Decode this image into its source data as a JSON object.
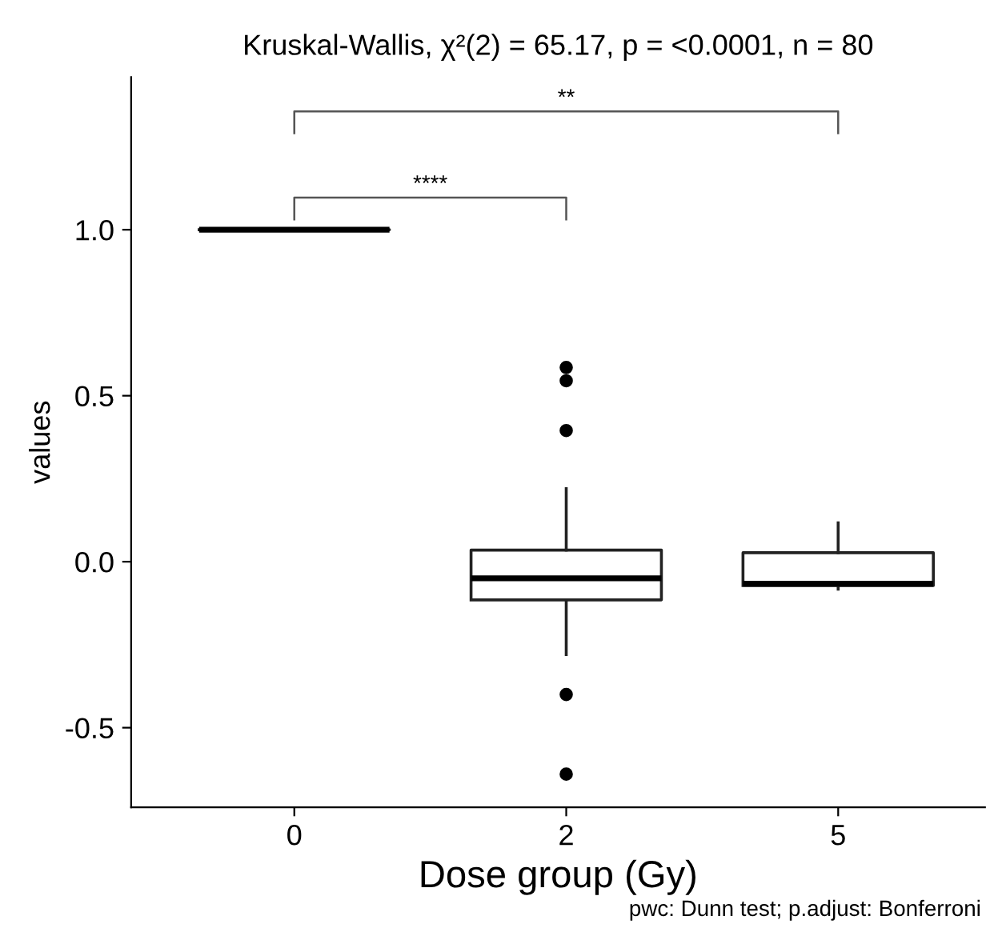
{
  "chart_data": {
    "type": "box",
    "title": "Kruskal-Wallis, χ²(2) = 65.17, p = <0.0001, n = 80",
    "xlabel": "Dose group (Gy)",
    "ylabel": "values",
    "categories": [
      "0",
      "2",
      "5"
    ],
    "boxes": [
      {
        "low": 1.0,
        "q1": 1.0,
        "median": 1.0,
        "q3": 1.0,
        "high": 1.0
      },
      {
        "low": -0.28,
        "q1": -0.115,
        "median": -0.05,
        "q3": 0.035,
        "high": 0.22,
        "outliers": [
          0.585,
          0.545,
          0.395,
          -0.4,
          -0.64
        ]
      },
      {
        "low": -0.083,
        "q1": -0.072,
        "median": -0.066,
        "q3": 0.027,
        "high": 0.117
      }
    ],
    "ylim": [
      -0.74,
      1.46
    ],
    "yticks": [
      -0.5,
      {
        "value": 0,
        "label": "0.0"
      },
      0.5,
      {
        "value": 1,
        "label": "1.0"
      }
    ],
    "grid": false,
    "annotations": [
      "****",
      "**",
      "pwc: Dunn test; p.adjust: Bonferroni"
    ]
  }
}
